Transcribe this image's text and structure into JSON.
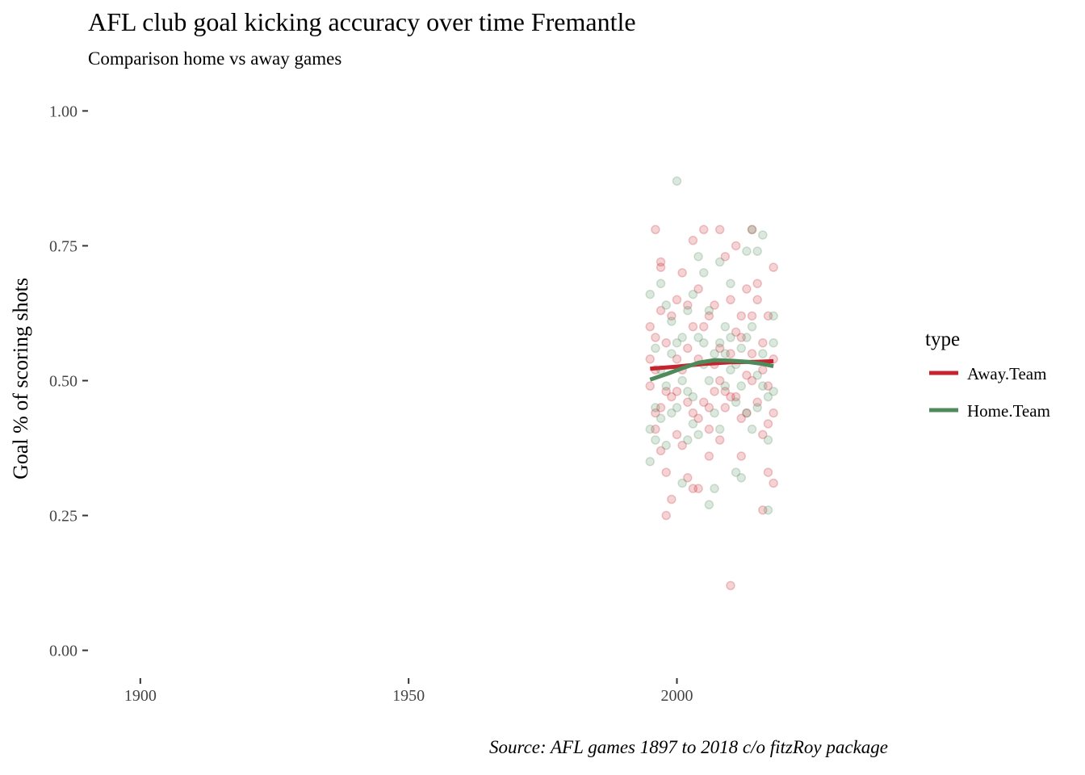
{
  "chart_data": {
    "type": "scatter",
    "title": "AFL club goal kicking accuracy over time Fremantle",
    "subtitle": "Comparison home vs away games",
    "xlabel": "",
    "ylabel": "Goal % of scoring shots",
    "caption": "Source: AFL games 1897 to 2018 c/o fitzRoy package",
    "xlim": [
      1891,
      2041
    ],
    "ylim": [
      -0.05,
      1.05
    ],
    "x_ticks": [
      1900,
      1950,
      2000
    ],
    "x_tick_labels": [
      "1900",
      "1950",
      "2000"
    ],
    "y_ticks": [
      0,
      0.25,
      0.5,
      0.75,
      1
    ],
    "y_tick_labels": [
      "0.00",
      "0.25",
      "0.50",
      "0.75",
      "1.00"
    ],
    "grid": false,
    "legend": {
      "title": "type",
      "position": "right"
    },
    "series": [
      {
        "name": "Away.Team",
        "color": "#c7232f",
        "trend": [
          [
            1995,
            0.522
          ],
          [
            2000,
            0.526
          ],
          [
            2005,
            0.531
          ],
          [
            2010,
            0.534
          ],
          [
            2015,
            0.535
          ],
          [
            2018,
            0.536
          ]
        ],
        "points": [
          [
            1996,
            0.78
          ],
          [
            1997,
            0.71
          ],
          [
            1997,
            0.72
          ],
          [
            1995,
            0.6
          ],
          [
            1996,
            0.58
          ],
          [
            1996,
            0.44
          ],
          [
            1997,
            0.37
          ],
          [
            1998,
            0.25
          ],
          [
            1998,
            0.33
          ],
          [
            1999,
            0.28
          ],
          [
            2000,
            0.65
          ],
          [
            2001,
            0.7
          ],
          [
            2002,
            0.46
          ],
          [
            2003,
            0.3
          ],
          [
            2003,
            0.76
          ],
          [
            2004,
            0.67
          ],
          [
            2005,
            0.78
          ],
          [
            2006,
            0.41
          ],
          [
            2007,
            0.64
          ],
          [
            2008,
            0.78
          ],
          [
            2009,
            0.73
          ],
          [
            2010,
            0.12
          ],
          [
            2011,
            0.75
          ],
          [
            2012,
            0.43
          ],
          [
            2013,
            0.67
          ],
          [
            2014,
            0.78
          ],
          [
            2015,
            0.68
          ],
          [
            2016,
            0.26
          ],
          [
            2017,
            0.33
          ],
          [
            2018,
            0.71
          ],
          [
            2018,
            0.31
          ],
          [
            1995,
            0.49
          ],
          [
            1996,
            0.52
          ],
          [
            1997,
            0.45
          ],
          [
            1998,
            0.48
          ],
          [
            1999,
            0.62
          ],
          [
            2000,
            0.54
          ],
          [
            2001,
            0.52
          ],
          [
            2002,
            0.56
          ],
          [
            2003,
            0.44
          ],
          [
            2004,
            0.43
          ],
          [
            2005,
            0.6
          ],
          [
            2006,
            0.62
          ],
          [
            2007,
            0.48
          ],
          [
            2008,
            0.5
          ],
          [
            2009,
            0.45
          ],
          [
            2010,
            0.55
          ],
          [
            2011,
            0.47
          ],
          [
            2012,
            0.58
          ],
          [
            2013,
            0.51
          ],
          [
            2014,
            0.55
          ],
          [
            2015,
            0.46
          ],
          [
            2016,
            0.52
          ],
          [
            2017,
            0.42
          ],
          [
            2018,
            0.54
          ],
          [
            1996,
            0.41
          ],
          [
            1998,
            0.57
          ],
          [
            2000,
            0.4
          ],
          [
            2002,
            0.32
          ],
          [
            2004,
            0.3
          ],
          [
            2006,
            0.36
          ],
          [
            2008,
            0.39
          ],
          [
            2010,
            0.65
          ],
          [
            2012,
            0.36
          ],
          [
            2014,
            0.62
          ],
          [
            2016,
            0.4
          ],
          [
            2017,
            0.62
          ],
          [
            1999,
            0.47
          ],
          [
            2001,
            0.38
          ],
          [
            2003,
            0.6
          ],
          [
            2005,
            0.46
          ],
          [
            2007,
            0.53
          ],
          [
            2009,
            0.48
          ],
          [
            2011,
            0.59
          ],
          [
            2013,
            0.44
          ],
          [
            2015,
            0.65
          ],
          [
            2017,
            0.49
          ],
          [
            1995,
            0.54
          ],
          [
            1997,
            0.63
          ],
          [
            2000,
            0.48
          ],
          [
            2002,
            0.64
          ],
          [
            2004,
            0.54
          ],
          [
            2006,
            0.45
          ],
          [
            2008,
            0.56
          ],
          [
            2010,
            0.47
          ],
          [
            2012,
            0.62
          ],
          [
            2014,
            0.5
          ],
          [
            2016,
            0.57
          ],
          [
            2018,
            0.44
          ]
        ]
      },
      {
        "name": "Home.Team",
        "color": "#4f8a5b",
        "trend": [
          [
            1995,
            0.502
          ],
          [
            1998,
            0.512
          ],
          [
            2001,
            0.523
          ],
          [
            2004,
            0.533
          ],
          [
            2007,
            0.538
          ],
          [
            2010,
            0.537
          ],
          [
            2013,
            0.535
          ],
          [
            2016,
            0.531
          ],
          [
            2018,
            0.527
          ]
        ],
        "points": [
          [
            1995,
            0.35
          ],
          [
            1995,
            0.66
          ],
          [
            1996,
            0.56
          ],
          [
            1997,
            0.68
          ],
          [
            1998,
            0.38
          ],
          [
            1999,
            0.61
          ],
          [
            2000,
            0.87
          ],
          [
            2001,
            0.31
          ],
          [
            2002,
            0.39
          ],
          [
            2003,
            0.66
          ],
          [
            2004,
            0.73
          ],
          [
            2005,
            0.7
          ],
          [
            2006,
            0.27
          ],
          [
            2007,
            0.3
          ],
          [
            2008,
            0.72
          ],
          [
            2009,
            0.55
          ],
          [
            2010,
            0.68
          ],
          [
            2011,
            0.33
          ],
          [
            2012,
            0.32
          ],
          [
            2013,
            0.74
          ],
          [
            2014,
            0.78
          ],
          [
            2015,
            0.74
          ],
          [
            2016,
            0.77
          ],
          [
            2017,
            0.26
          ],
          [
            2018,
            0.48
          ],
          [
            1995,
            0.41
          ],
          [
            1996,
            0.45
          ],
          [
            1997,
            0.52
          ],
          [
            1998,
            0.49
          ],
          [
            1999,
            0.44
          ],
          [
            2000,
            0.57
          ],
          [
            2001,
            0.5
          ],
          [
            2002,
            0.48
          ],
          [
            2003,
            0.42
          ],
          [
            2004,
            0.58
          ],
          [
            2005,
            0.53
          ],
          [
            2006,
            0.5
          ],
          [
            2007,
            0.44
          ],
          [
            2008,
            0.57
          ],
          [
            2009,
            0.49
          ],
          [
            2010,
            0.52
          ],
          [
            2011,
            0.46
          ],
          [
            2012,
            0.56
          ],
          [
            2013,
            0.44
          ],
          [
            2014,
            0.6
          ],
          [
            2015,
            0.51
          ],
          [
            2016,
            0.49
          ],
          [
            2017,
            0.47
          ],
          [
            2018,
            0.57
          ],
          [
            1996,
            0.39
          ],
          [
            1998,
            0.64
          ],
          [
            2000,
            0.45
          ],
          [
            2002,
            0.63
          ],
          [
            2004,
            0.4
          ],
          [
            2006,
            0.63
          ],
          [
            2008,
            0.41
          ],
          [
            2010,
            0.58
          ],
          [
            2012,
            0.49
          ],
          [
            2014,
            0.41
          ],
          [
            2016,
            0.55
          ],
          [
            2018,
            0.62
          ],
          [
            1997,
            0.43
          ],
          [
            1999,
            0.55
          ],
          [
            2001,
            0.58
          ],
          [
            2003,
            0.47
          ],
          [
            2005,
            0.57
          ],
          [
            2007,
            0.55
          ],
          [
            2009,
            0.6
          ],
          [
            2011,
            0.53
          ],
          [
            2013,
            0.58
          ],
          [
            2015,
            0.45
          ],
          [
            2017,
            0.39
          ]
        ]
      }
    ]
  }
}
